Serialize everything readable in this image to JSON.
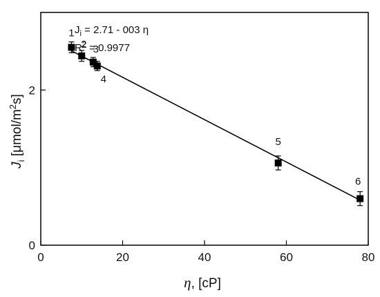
{
  "chart_data": {
    "type": "scatter",
    "xlabel": {
      "symbol": "η",
      "unit": ", [cP]"
    },
    "ylabel": {
      "symbol": "J",
      "subscript": "i",
      "unit_before": " [μmol/m",
      "unit_sup": "2",
      "unit_after": "s]"
    },
    "xlim": [
      0,
      80
    ],
    "ylim": [
      0,
      3.0
    ],
    "xticks": [
      0,
      20,
      40,
      60,
      80
    ],
    "yticks": [
      0,
      2
    ],
    "grid": false,
    "equation": {
      "lhs": "J",
      "lhs_sub": "i",
      "rhs": " = 2.71 - 003 η"
    },
    "r_squared": {
      "prefix": "R",
      "sup": "2",
      "rest": " = 0.9977"
    },
    "points": [
      {
        "label": "1",
        "x": 7.5,
        "y": 2.55,
        "err": 0.07
      },
      {
        "label": "2",
        "x": 10.0,
        "y": 2.44,
        "err": 0.07
      },
      {
        "label": "3",
        "x": 12.8,
        "y": 2.36,
        "err": 0.06
      },
      {
        "label": "4",
        "x": 13.8,
        "y": 2.31,
        "err": 0.06
      },
      {
        "label": "5",
        "x": 58.0,
        "y": 1.06,
        "err": 0.09
      },
      {
        "label": "6",
        "x": 78.0,
        "y": 0.6,
        "err": 0.09
      }
    ],
    "fit_line": {
      "x_start": 7.5,
      "x_end": 78.0,
      "intercept": 2.71,
      "slope": -0.0273
    },
    "colors": {
      "marker": "#000000",
      "line": "#000000",
      "text": "#111111"
    }
  }
}
